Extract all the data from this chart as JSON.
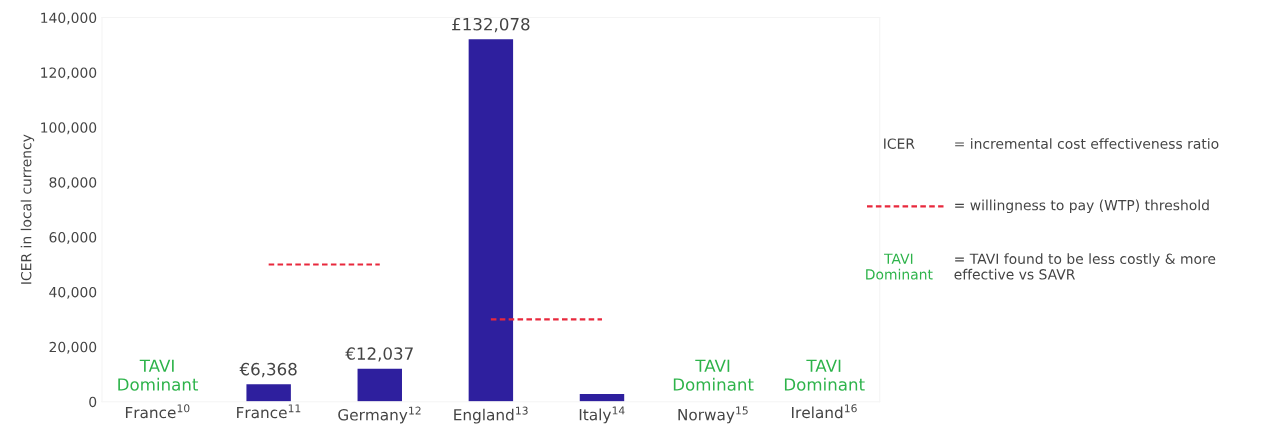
{
  "chart_data": {
    "type": "bar",
    "ylabel": "ICER in local currency",
    "categories": [
      "France$^{10}$",
      "France$^{11}$",
      "Germany$^{12}$",
      "England$^{13}$",
      "Italy$^{14}$",
      "Norway$^{15}$",
      "Ireland$^{16}$"
    ],
    "ylim": [
      0,
      140000
    ],
    "yticks": [
      0,
      {
        "value": 20000,
        "label": "20,000"
      },
      {
        "value": 40000,
        "label": "40,000"
      },
      {
        "value": 60000,
        "label": "60,000"
      },
      {
        "value": 80000,
        "label": "80,000"
      },
      {
        "value": 100000,
        "label": "100,000"
      },
      {
        "value": 120000,
        "label": "120,000"
      },
      {
        "value": 140000,
        "label": "140,000"
      }
    ],
    "series": [
      {
        "color": "#2e1f9e",
        "values": [
          null,
          6368,
          12037,
          132078,
          2800,
          null,
          null
        ],
        "value_labels": [
          null,
          "€6,368",
          "€12,037",
          "£132,078",
          null,
          null,
          null
        ]
      },
      {
        "type": "line",
        "name": "= willingness to pay (WTP) threshold",
        "color": "#e8283c",
        "line_style": "dashed",
        "values": [
          null,
          50000,
          50000,
          null,
          null,
          null,
          null
        ]
      },
      {
        "type": "line",
        "color": "#e8283c",
        "line_style": "dashed",
        "values": [
          null,
          null,
          null,
          30000,
          30000,
          null,
          null
        ]
      }
    ],
    "annotations": [
      "TAVI\nDominant",
      "TAVI\nDominant",
      "TAVI\nDominant",
      "ICER",
      "= incremental cost effectiveness ratio",
      "TAVI\nDominant",
      "= TAVI found to be less costly & more\neffective vs SAVR"
    ],
    "grid": false
  }
}
